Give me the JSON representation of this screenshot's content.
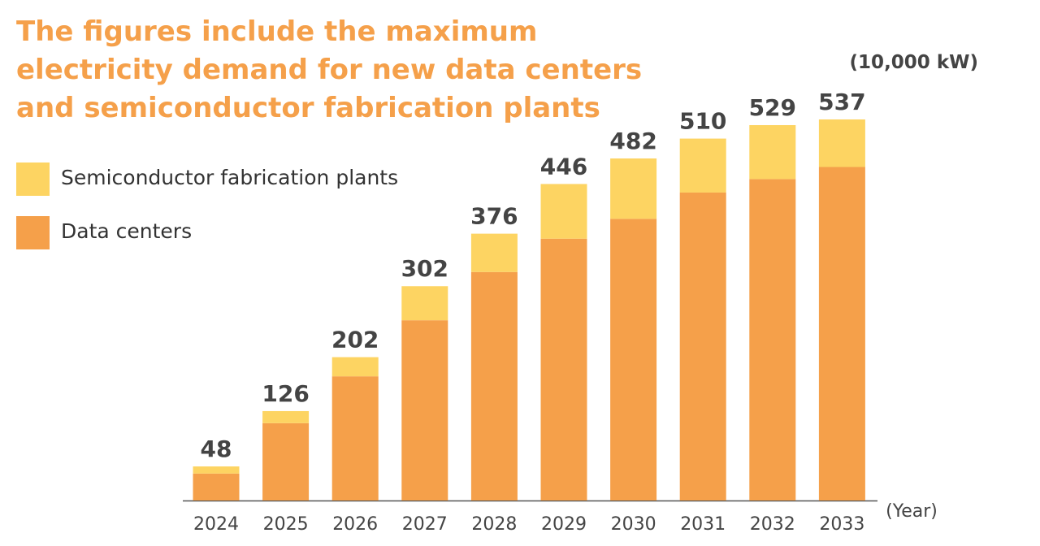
{
  "title_lines": [
    "The figures include the maximum",
    "electricity demand for new data centers",
    "and semiconductor fabrication plants"
  ],
  "unit": "(10,000 kW)",
  "x_unit": "(Year)",
  "colors": {
    "semiconductor": "#fdd462",
    "data_centers": "#f5a04a",
    "title": "#f5a04a"
  },
  "chart_data": {
    "type": "bar",
    "stacked": true,
    "categories": [
      "2024",
      "2025",
      "2026",
      "2027",
      "2028",
      "2029",
      "2030",
      "2031",
      "2032",
      "2033"
    ],
    "series": [
      {
        "name": "Data centers",
        "values": [
          38,
          109,
          175,
          254,
          322,
          369,
          397,
          434,
          453,
          470
        ]
      },
      {
        "name": "Semiconductor fabrication plants",
        "values": [
          10,
          17,
          27,
          48,
          54,
          77,
          85,
          76,
          76,
          67
        ]
      }
    ],
    "totals": [
      48,
      126,
      202,
      302,
      376,
      446,
      482,
      510,
      529,
      537
    ],
    "ylabel": "(10,000 kW)",
    "xlabel": "(Year)",
    "ylim": [
      0,
      537
    ],
    "grid": false,
    "legend_position": "top-left"
  },
  "legend": [
    {
      "label": "Semiconductor fabrication plants",
      "series": "Semiconductor fabrication plants"
    },
    {
      "label": "Data centers",
      "series": "Data centers"
    }
  ]
}
